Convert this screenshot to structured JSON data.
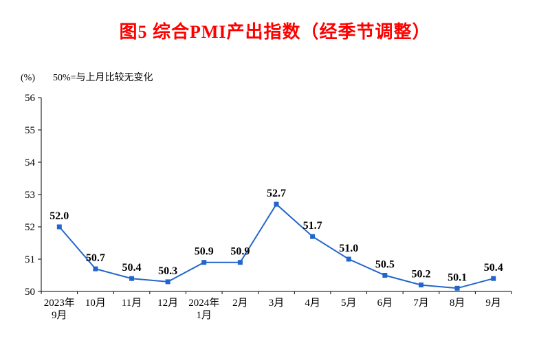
{
  "title": "图5 综合PMI产出指数（经季节调整）",
  "unit": "(%)",
  "baseline_note": "50%=与上月比较无变化",
  "chart_data": {
    "type": "line",
    "title": "图5 综合PMI产出指数（经季节调整）",
    "categories": [
      [
        "2023年",
        "9月"
      ],
      [
        "10月"
      ],
      [
        "11月"
      ],
      [
        "12月"
      ],
      [
        "2024年",
        "1月"
      ],
      [
        "2月"
      ],
      [
        "3月"
      ],
      [
        "4月"
      ],
      [
        "5月"
      ],
      [
        "6月"
      ],
      [
        "7月"
      ],
      [
        "8月"
      ],
      [
        "9月"
      ]
    ],
    "values": [
      52.0,
      50.7,
      50.4,
      50.3,
      50.9,
      50.9,
      52.7,
      51.7,
      51.0,
      50.5,
      50.2,
      50.1,
      50.4
    ],
    "xlabel": "",
    "ylabel": "(%)",
    "ylim": [
      50,
      56
    ],
    "ytick_step": 1,
    "grid": false,
    "legend_position": "none",
    "line_color": "#2266CC",
    "marker": "square",
    "data_labels": true
  }
}
